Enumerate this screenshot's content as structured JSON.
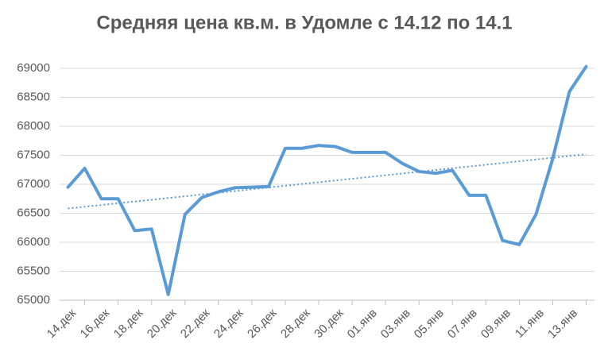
{
  "chart_data": {
    "type": "line",
    "title": "Средняя цена кв.м. в Удомле с 14.12 по 14.1",
    "categories": [
      "14.дек",
      null,
      "16.дек",
      null,
      "18.дек",
      null,
      "20.дек",
      null,
      "22.дек",
      null,
      "24.дек",
      null,
      "26.дек",
      null,
      "28.дек",
      null,
      "30.дек",
      null,
      "01.янв",
      null,
      "03.янв",
      null,
      "05.янв",
      null,
      "07.янв",
      null,
      "09.янв",
      null,
      "11.янв",
      null,
      "13.янв",
      null
    ],
    "values": [
      66950,
      67275,
      66750,
      66750,
      66200,
      66230,
      65100,
      66480,
      66770,
      66870,
      66940,
      66950,
      66960,
      67620,
      67620,
      67670,
      67650,
      67550,
      67550,
      67550,
      67360,
      67220,
      67190,
      67240,
      66810,
      66810,
      66030,
      65960,
      66480,
      67440,
      68600,
      69030
    ],
    "color": "#5b9bd5",
    "ylim": [
      65000,
      69000
    ],
    "yticks": [
      65000,
      65500,
      66000,
      66500,
      67000,
      67500,
      68000,
      68500,
      69000
    ],
    "grid": true,
    "trendline": true
  }
}
